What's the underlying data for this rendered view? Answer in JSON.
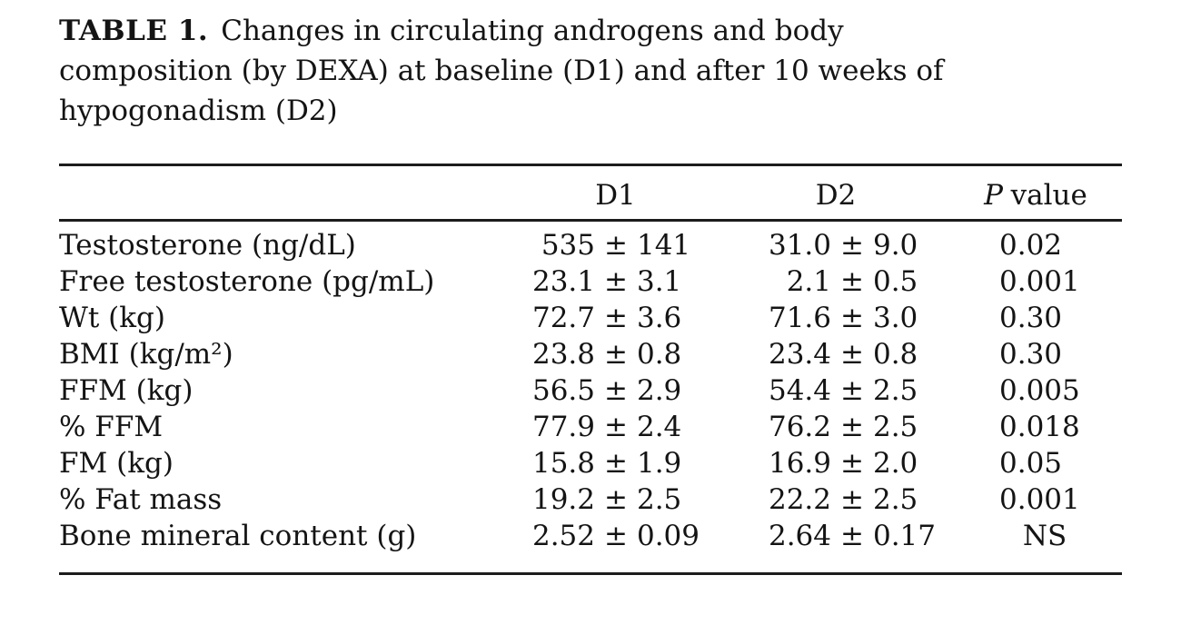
{
  "caption": {
    "label": "TABLE 1.",
    "line1": "Changes in circulating androgens and body",
    "line2": "composition (by DEXA) at baseline (D1) and after 10 weeks of",
    "line3": "hypogonadism (D2)"
  },
  "table": {
    "plus_minus": "±",
    "header": {
      "d1": "D1",
      "d2": "D2",
      "p_italic": "P",
      "p_rest": "value"
    },
    "rows": [
      {
        "label": "Testosterone (ng/dL)",
        "d1_val": "535",
        "d1_err": "141",
        "d2_val": "31.0",
        "d2_err": "9.0",
        "p": "0.02"
      },
      {
        "label": "Free testosterone (pg/mL)",
        "d1_val": "23.1",
        "d1_err": "3.1",
        "d2_val": "2.1",
        "d2_err": "0.5",
        "p": "0.001"
      },
      {
        "label": "Wt (kg)",
        "d1_val": "72.7",
        "d1_err": "3.6",
        "d2_val": "71.6",
        "d2_err": "3.0",
        "p": "0.30"
      },
      {
        "label": "BMI (kg/m²)",
        "d1_val": "23.8",
        "d1_err": "0.8",
        "d2_val": "23.4",
        "d2_err": "0.8",
        "p": "0.30"
      },
      {
        "label": "FFM (kg)",
        "d1_val": "56.5",
        "d1_err": "2.9",
        "d2_val": "54.4",
        "d2_err": "2.5",
        "p": "0.005"
      },
      {
        "label": "% FFM",
        "d1_val": "77.9",
        "d1_err": "2.4",
        "d2_val": "76.2",
        "d2_err": "2.5",
        "p": "0.018"
      },
      {
        "label": "FM (kg)",
        "d1_val": "15.8",
        "d1_err": "1.9",
        "d2_val": "16.9",
        "d2_err": "2.0",
        "p": "0.05"
      },
      {
        "label": "% Fat mass",
        "d1_val": "19.2",
        "d1_err": "2.5",
        "d2_val": "22.2",
        "d2_err": "2.5",
        "p": "0.001"
      },
      {
        "label": "Bone mineral content (g)",
        "d1_val": "2.52",
        "d1_err": "0.09",
        "d2_val": "2.64",
        "d2_err": "0.17",
        "p": "NS"
      }
    ]
  }
}
